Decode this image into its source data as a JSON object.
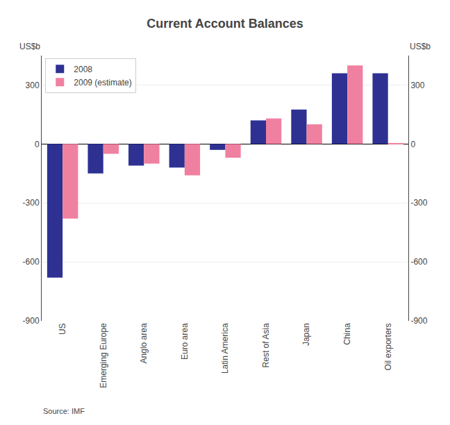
{
  "chart_data": {
    "type": "bar",
    "title": "Current Account Balances",
    "categories": [
      "US",
      "Emerging Europe",
      "Anglo area",
      "Euro area",
      "Latin America",
      "Rest of Asia",
      "Japan",
      "China",
      "Oil exporters"
    ],
    "series": [
      {
        "name": "2008",
        "color": "#2E3192",
        "values": [
          -680,
          -150,
          -110,
          -120,
          -30,
          120,
          175,
          360,
          360
        ]
      },
      {
        "name": "2009 (estimate)",
        "color": "#F080A0",
        "values": [
          -380,
          -50,
          -100,
          -160,
          -70,
          130,
          100,
          400,
          5
        ]
      }
    ],
    "ylim": [
      -900,
      450
    ],
    "yticks": [
      -900,
      -600,
      -300,
      0,
      300
    ],
    "y2lim": [
      -900,
      450
    ],
    "y2ticks": [
      -900,
      -600,
      -300,
      0,
      300
    ],
    "annotations": [
      "US$b",
      "US$b",
      "Source: IMF"
    ],
    "grid": true,
    "legend": "upper left"
  }
}
